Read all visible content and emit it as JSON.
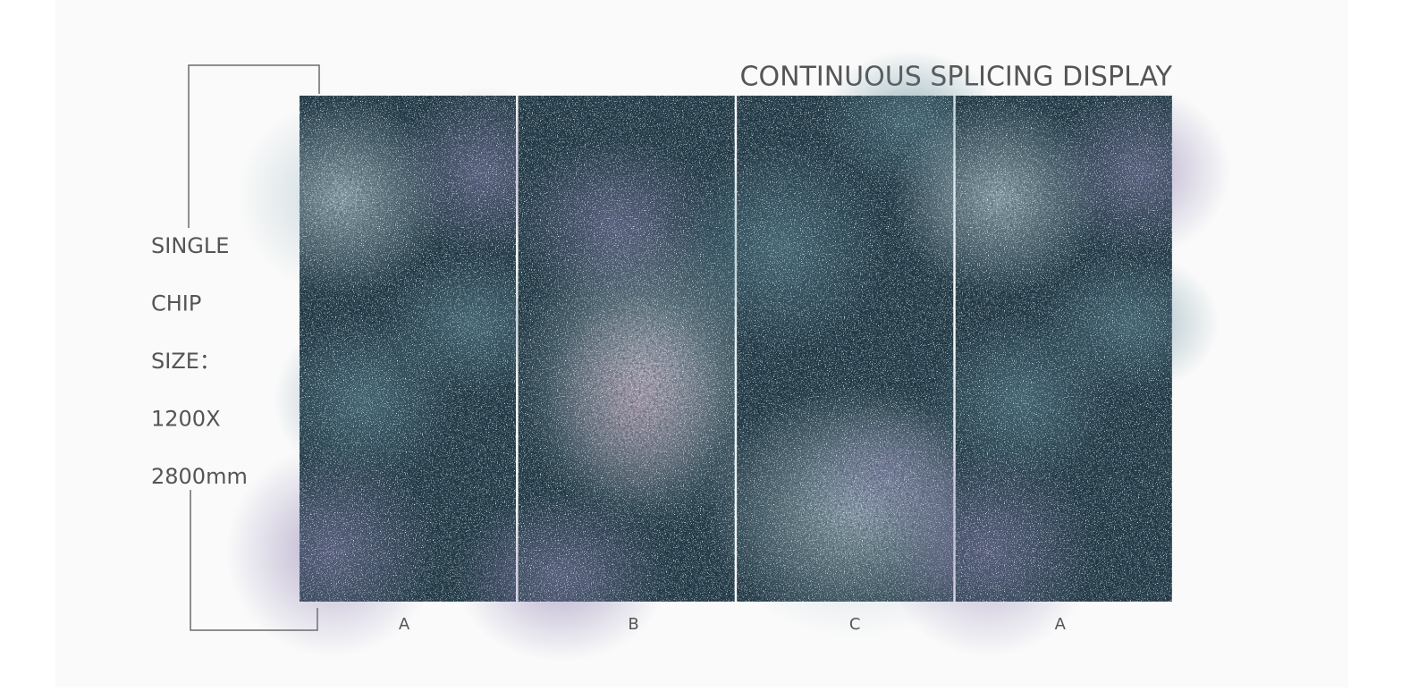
{
  "header": {
    "title": "CONTINUOUS SPLICING DISPLAY"
  },
  "size_label": {
    "lines": [
      "SINGLE",
      "CHIP",
      "SIZE：",
      "1200X",
      "2800mm"
    ]
  },
  "panels": [
    {
      "label": "A"
    },
    {
      "label": "B"
    },
    {
      "label": "C"
    },
    {
      "label": "A"
    }
  ]
}
